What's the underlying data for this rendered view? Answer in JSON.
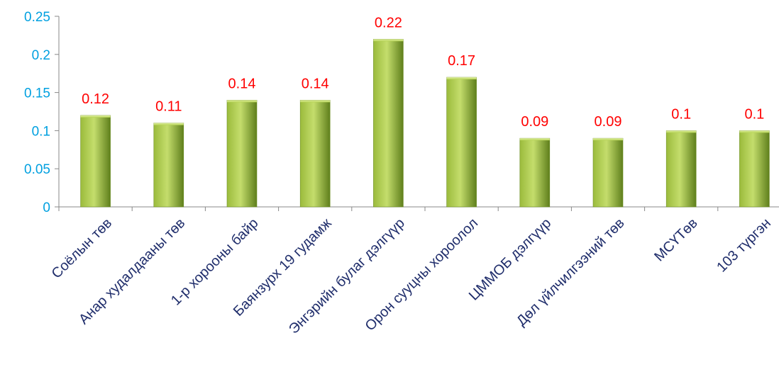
{
  "chart_data": {
    "type": "bar",
    "categories": [
      "Соёлын төв",
      "Анар худалдааны төв",
      "1-р хорооны байр",
      "Баянзурх 19 гудамж",
      "Энгэрийн булаг дэлгүүр",
      "Орон сууцны хороолол",
      "ЦММОБ дэлгүүр",
      "Дөл үйлчилгээний төв",
      "МСҮТөв",
      "103 түргэн"
    ],
    "values": [
      0.12,
      0.11,
      0.14,
      0.14,
      0.22,
      0.17,
      0.09,
      0.09,
      0.1,
      0.1
    ],
    "value_labels": [
      "0.12",
      "0.11",
      "0.14",
      "0.14",
      "0.22",
      "0.17",
      "0.09",
      "0.09",
      "0.1",
      "0.1"
    ],
    "y_ticks": [
      0,
      0.05,
      0.1,
      0.15,
      0.2,
      0.25
    ],
    "y_tick_labels": [
      "0",
      "0.05",
      "0.1",
      "0.15",
      "0.2",
      "0.25"
    ],
    "ylim": [
      0,
      0.25
    ],
    "grid": false,
    "legend": "none",
    "title": "",
    "xlabel": "",
    "ylabel": "",
    "colors": {
      "bar_light": "#c4dd6c",
      "bar_mid": "#9bbb3c",
      "bar_dark": "#5f7f1c",
      "value_label": "#ff0000",
      "y_tick_label": "#00a0e0",
      "x_tick_label": "#1f2d6b",
      "axis": "#888888"
    }
  }
}
